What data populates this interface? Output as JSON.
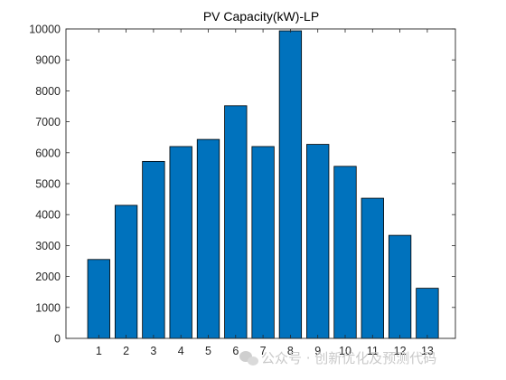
{
  "chart_data": {
    "type": "bar",
    "title": "PV Capacity(kW)-LP",
    "xlabel": "",
    "ylabel": "",
    "categories": [
      "1",
      "2",
      "3",
      "4",
      "5",
      "6",
      "7",
      "8",
      "9",
      "10",
      "11",
      "12",
      "13"
    ],
    "values": [
      2550,
      4300,
      5720,
      6200,
      6430,
      7520,
      6200,
      9940,
      6270,
      5560,
      4530,
      3330,
      1620
    ],
    "ylim": [
      0,
      10000
    ],
    "yticks": [
      0,
      1000,
      2000,
      3000,
      4000,
      5000,
      6000,
      7000,
      8000,
      9000,
      10000
    ],
    "ytick_labels": [
      "0",
      "1000",
      "2000",
      "3000",
      "4000",
      "5000",
      "6000",
      "7000",
      "8000",
      "9000",
      "10000"
    ],
    "grid": false,
    "legend": "none",
    "colors": {
      "bar_fill": "#0072BD",
      "bar_edge": "#000000",
      "axis": "#262626"
    }
  },
  "watermark": {
    "text": "公众号 · 创新优化及预测代码"
  }
}
